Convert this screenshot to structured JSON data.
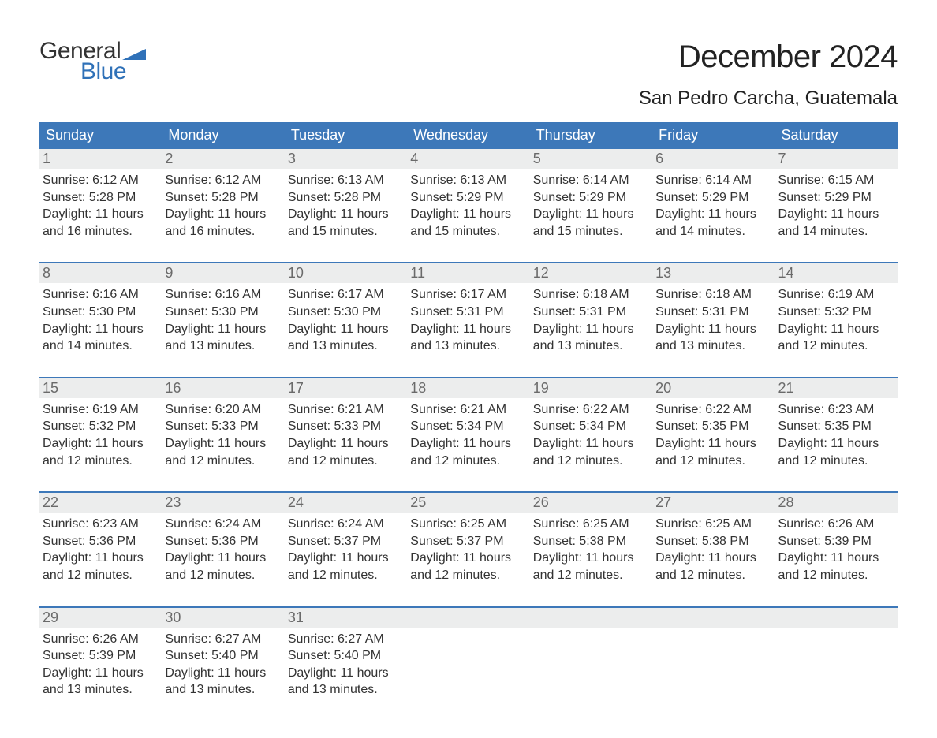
{
  "logo": {
    "text_general": "General",
    "text_blue": "Blue",
    "triangle_color": "#2f71b8",
    "general_color": "#333333",
    "blue_color": "#2f71b8"
  },
  "header": {
    "month_title": "December 2024",
    "location": "San Pedro Carcha, Guatemala"
  },
  "colors": {
    "weekday_bg": "#3d78b9",
    "weekday_text": "#ffffff",
    "daynum_bg": "#eceded",
    "daynum_text": "#6a6a6a",
    "body_text": "#333333",
    "week_border": "#3d78b9",
    "background": "#ffffff"
  },
  "typography": {
    "month_title_fontsize": 40,
    "location_fontsize": 24,
    "weekday_fontsize": 18,
    "daynum_fontsize": 18,
    "body_fontsize": 16,
    "font_family": "Arial"
  },
  "weekdays": [
    "Sunday",
    "Monday",
    "Tuesday",
    "Wednesday",
    "Thursday",
    "Friday",
    "Saturday"
  ],
  "labels": {
    "sunrise_prefix": "Sunrise: ",
    "sunset_prefix": "Sunset: ",
    "daylight_prefix": "Daylight: ",
    "hours_word": " hours",
    "and_word": "and ",
    "minutes_word": " minutes."
  },
  "weeks": [
    [
      {
        "day": "1",
        "sunrise": "6:12 AM",
        "sunset": "5:28 PM",
        "dl_h": "11",
        "dl_m": "16"
      },
      {
        "day": "2",
        "sunrise": "6:12 AM",
        "sunset": "5:28 PM",
        "dl_h": "11",
        "dl_m": "16"
      },
      {
        "day": "3",
        "sunrise": "6:13 AM",
        "sunset": "5:28 PM",
        "dl_h": "11",
        "dl_m": "15"
      },
      {
        "day": "4",
        "sunrise": "6:13 AM",
        "sunset": "5:29 PM",
        "dl_h": "11",
        "dl_m": "15"
      },
      {
        "day": "5",
        "sunrise": "6:14 AM",
        "sunset": "5:29 PM",
        "dl_h": "11",
        "dl_m": "15"
      },
      {
        "day": "6",
        "sunrise": "6:14 AM",
        "sunset": "5:29 PM",
        "dl_h": "11",
        "dl_m": "14"
      },
      {
        "day": "7",
        "sunrise": "6:15 AM",
        "sunset": "5:29 PM",
        "dl_h": "11",
        "dl_m": "14"
      }
    ],
    [
      {
        "day": "8",
        "sunrise": "6:16 AM",
        "sunset": "5:30 PM",
        "dl_h": "11",
        "dl_m": "14"
      },
      {
        "day": "9",
        "sunrise": "6:16 AM",
        "sunset": "5:30 PM",
        "dl_h": "11",
        "dl_m": "13"
      },
      {
        "day": "10",
        "sunrise": "6:17 AM",
        "sunset": "5:30 PM",
        "dl_h": "11",
        "dl_m": "13"
      },
      {
        "day": "11",
        "sunrise": "6:17 AM",
        "sunset": "5:31 PM",
        "dl_h": "11",
        "dl_m": "13"
      },
      {
        "day": "12",
        "sunrise": "6:18 AM",
        "sunset": "5:31 PM",
        "dl_h": "11",
        "dl_m": "13"
      },
      {
        "day": "13",
        "sunrise": "6:18 AM",
        "sunset": "5:31 PM",
        "dl_h": "11",
        "dl_m": "13"
      },
      {
        "day": "14",
        "sunrise": "6:19 AM",
        "sunset": "5:32 PM",
        "dl_h": "11",
        "dl_m": "12"
      }
    ],
    [
      {
        "day": "15",
        "sunrise": "6:19 AM",
        "sunset": "5:32 PM",
        "dl_h": "11",
        "dl_m": "12"
      },
      {
        "day": "16",
        "sunrise": "6:20 AM",
        "sunset": "5:33 PM",
        "dl_h": "11",
        "dl_m": "12"
      },
      {
        "day": "17",
        "sunrise": "6:21 AM",
        "sunset": "5:33 PM",
        "dl_h": "11",
        "dl_m": "12"
      },
      {
        "day": "18",
        "sunrise": "6:21 AM",
        "sunset": "5:34 PM",
        "dl_h": "11",
        "dl_m": "12"
      },
      {
        "day": "19",
        "sunrise": "6:22 AM",
        "sunset": "5:34 PM",
        "dl_h": "11",
        "dl_m": "12"
      },
      {
        "day": "20",
        "sunrise": "6:22 AM",
        "sunset": "5:35 PM",
        "dl_h": "11",
        "dl_m": "12"
      },
      {
        "day": "21",
        "sunrise": "6:23 AM",
        "sunset": "5:35 PM",
        "dl_h": "11",
        "dl_m": "12"
      }
    ],
    [
      {
        "day": "22",
        "sunrise": "6:23 AM",
        "sunset": "5:36 PM",
        "dl_h": "11",
        "dl_m": "12"
      },
      {
        "day": "23",
        "sunrise": "6:24 AM",
        "sunset": "5:36 PM",
        "dl_h": "11",
        "dl_m": "12"
      },
      {
        "day": "24",
        "sunrise": "6:24 AM",
        "sunset": "5:37 PM",
        "dl_h": "11",
        "dl_m": "12"
      },
      {
        "day": "25",
        "sunrise": "6:25 AM",
        "sunset": "5:37 PM",
        "dl_h": "11",
        "dl_m": "12"
      },
      {
        "day": "26",
        "sunrise": "6:25 AM",
        "sunset": "5:38 PM",
        "dl_h": "11",
        "dl_m": "12"
      },
      {
        "day": "27",
        "sunrise": "6:25 AM",
        "sunset": "5:38 PM",
        "dl_h": "11",
        "dl_m": "12"
      },
      {
        "day": "28",
        "sunrise": "6:26 AM",
        "sunset": "5:39 PM",
        "dl_h": "11",
        "dl_m": "12"
      }
    ],
    [
      {
        "day": "29",
        "sunrise": "6:26 AM",
        "sunset": "5:39 PM",
        "dl_h": "11",
        "dl_m": "13"
      },
      {
        "day": "30",
        "sunrise": "6:27 AM",
        "sunset": "5:40 PM",
        "dl_h": "11",
        "dl_m": "13"
      },
      {
        "day": "31",
        "sunrise": "6:27 AM",
        "sunset": "5:40 PM",
        "dl_h": "11",
        "dl_m": "13"
      },
      null,
      null,
      null,
      null
    ]
  ]
}
